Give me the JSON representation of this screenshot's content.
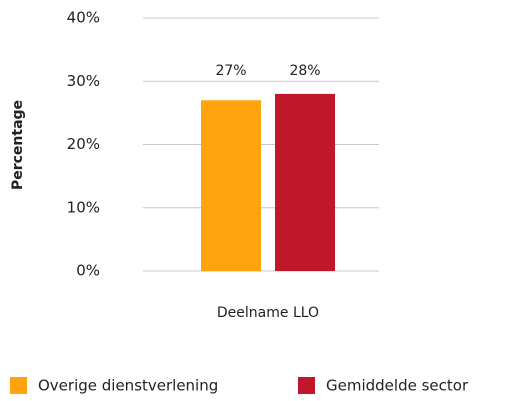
{
  "chart_data": {
    "type": "bar",
    "ylabel": "Percentage",
    "categories": [
      "Deelname LLO"
    ],
    "series": [
      {
        "name": "Overige dienstverlening",
        "color": "#ffa40f",
        "values": [
          27
        ],
        "value_labels": [
          "27%"
        ]
      },
      {
        "name": "Gemiddelde sector",
        "color": "#c0172a",
        "values": [
          28
        ],
        "value_labels": [
          "28%"
        ]
      }
    ],
    "ylim": [
      0,
      40
    ],
    "yticks": [
      {
        "value": 0,
        "label": "0%"
      },
      {
        "value": 10,
        "label": "10%"
      },
      {
        "value": 20,
        "label": "20%"
      },
      {
        "value": 30,
        "label": "30%"
      },
      {
        "value": 40,
        "label": "40%"
      }
    ],
    "grid": true,
    "legend": "bottom"
  }
}
